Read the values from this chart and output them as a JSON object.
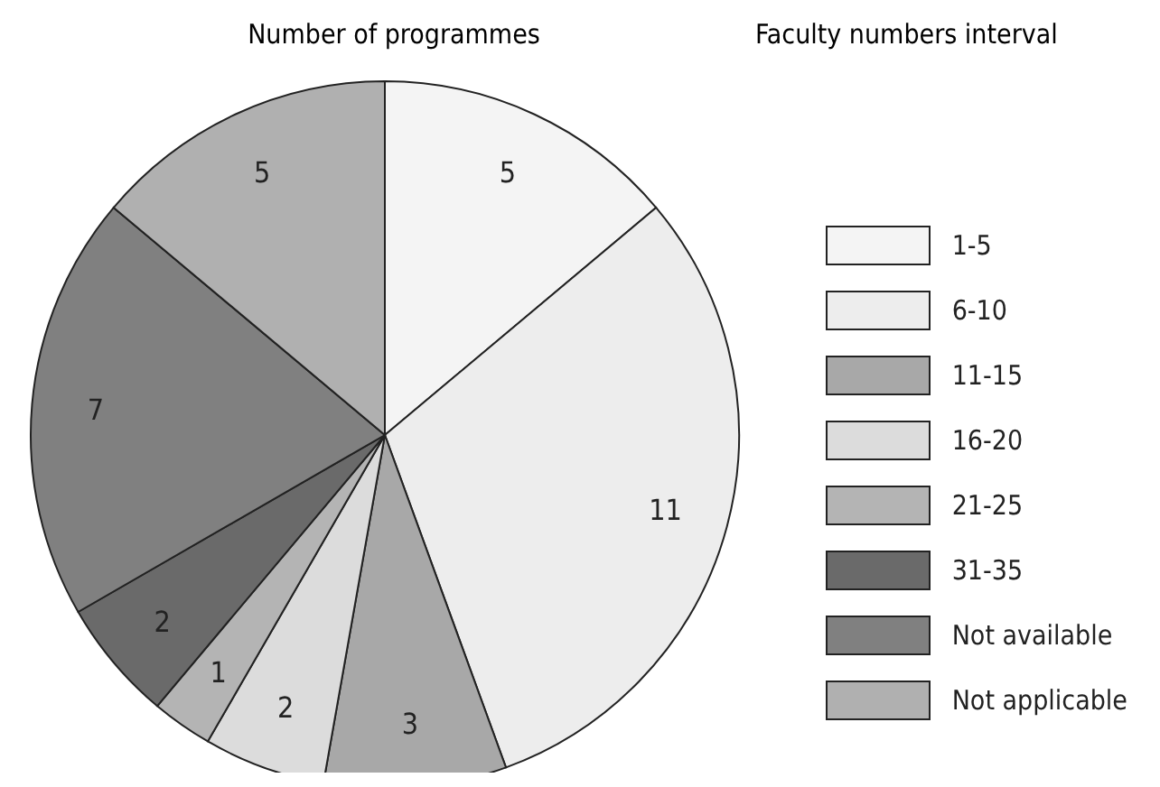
{
  "chart_data": {
    "type": "pie",
    "title": "Number of programmes",
    "legend_title": "Faculty numbers interval",
    "categories": [
      "1-5",
      "6-10",
      "11-15",
      "16-20",
      "21-25",
      "31-35",
      "Not available",
      "Not applicable"
    ],
    "values": [
      5,
      11,
      3,
      2,
      1,
      2,
      7,
      5
    ],
    "colors": [
      "#f4f4f4",
      "#ededed",
      "#a8a8a8",
      "#dcdcdc",
      "#b4b4b4",
      "#6a6a6a",
      "#808080",
      "#b0b0b0"
    ],
    "data_labels": true,
    "legend": "right"
  }
}
